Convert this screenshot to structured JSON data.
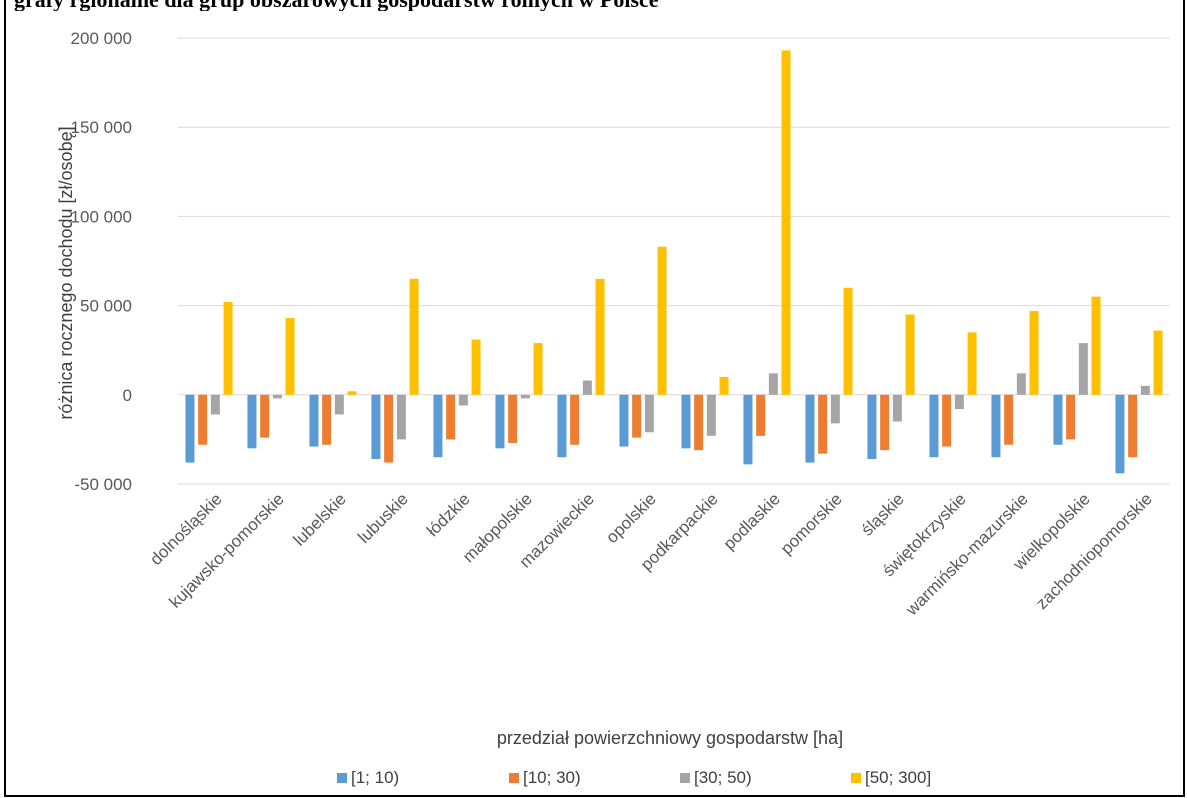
{
  "caption": "grafy rgionalne dla grup obszarowych gospodarstw rolnych w Polsce",
  "chart_data": {
    "type": "bar",
    "xlabel": "przedział powierzchniowy gospodarstw [ha]",
    "ylabel": "różnica rocznego dochodu [zł/osobę]",
    "ylim": [
      -50000,
      200000
    ],
    "yticks": [
      -50000,
      0,
      50000,
      100000,
      150000,
      200000
    ],
    "ytick_labels": [
      "-50 000",
      "0",
      "50 000",
      "100 000",
      "150 000",
      "200 000"
    ],
    "grid": true,
    "legend_position": "bottom",
    "categories": [
      "dolnośląskie",
      "kujawsko-pomorskie",
      "lubelskie",
      "lubuskie",
      "łódzkie",
      "małopolskie",
      "mazowieckie",
      "opolskie",
      "podkarpackie",
      "podlaskie",
      "pomorskie",
      "śląskie",
      "świętokrzyskie",
      "warmińsko-mazurskie",
      "wielkopolskie",
      "zachodniopomorskie"
    ],
    "series": [
      {
        "name": "[1; 10)",
        "color": "#5B9BD5",
        "values": [
          -38000,
          -30000,
          -29000,
          -36000,
          -35000,
          -30000,
          -35000,
          -29000,
          -30000,
          -39000,
          -38000,
          -36000,
          -35000,
          -35000,
          -28000,
          -44000
        ]
      },
      {
        "name": "[10; 30)",
        "color": "#ED7D31",
        "values": [
          -28000,
          -24000,
          -28000,
          -38000,
          -25000,
          -27000,
          -28000,
          -24000,
          -31000,
          -23000,
          -33000,
          -31000,
          -29000,
          -28000,
          -25000,
          -35000
        ]
      },
      {
        "name": "[30; 50)",
        "color": "#A5A5A5",
        "values": [
          -11000,
          -2000,
          -11000,
          -25000,
          -6000,
          -2000,
          8000,
          -21000,
          -23000,
          12000,
          -16000,
          -15000,
          -8000,
          12000,
          29000,
          5000
        ]
      },
      {
        "name": "[50; 300]",
        "color": "#FFC000",
        "values": [
          52000,
          43000,
          2000,
          65000,
          31000,
          29000,
          65000,
          83000,
          10000,
          193000,
          60000,
          45000,
          35000,
          47000,
          55000,
          36000
        ]
      }
    ]
  }
}
